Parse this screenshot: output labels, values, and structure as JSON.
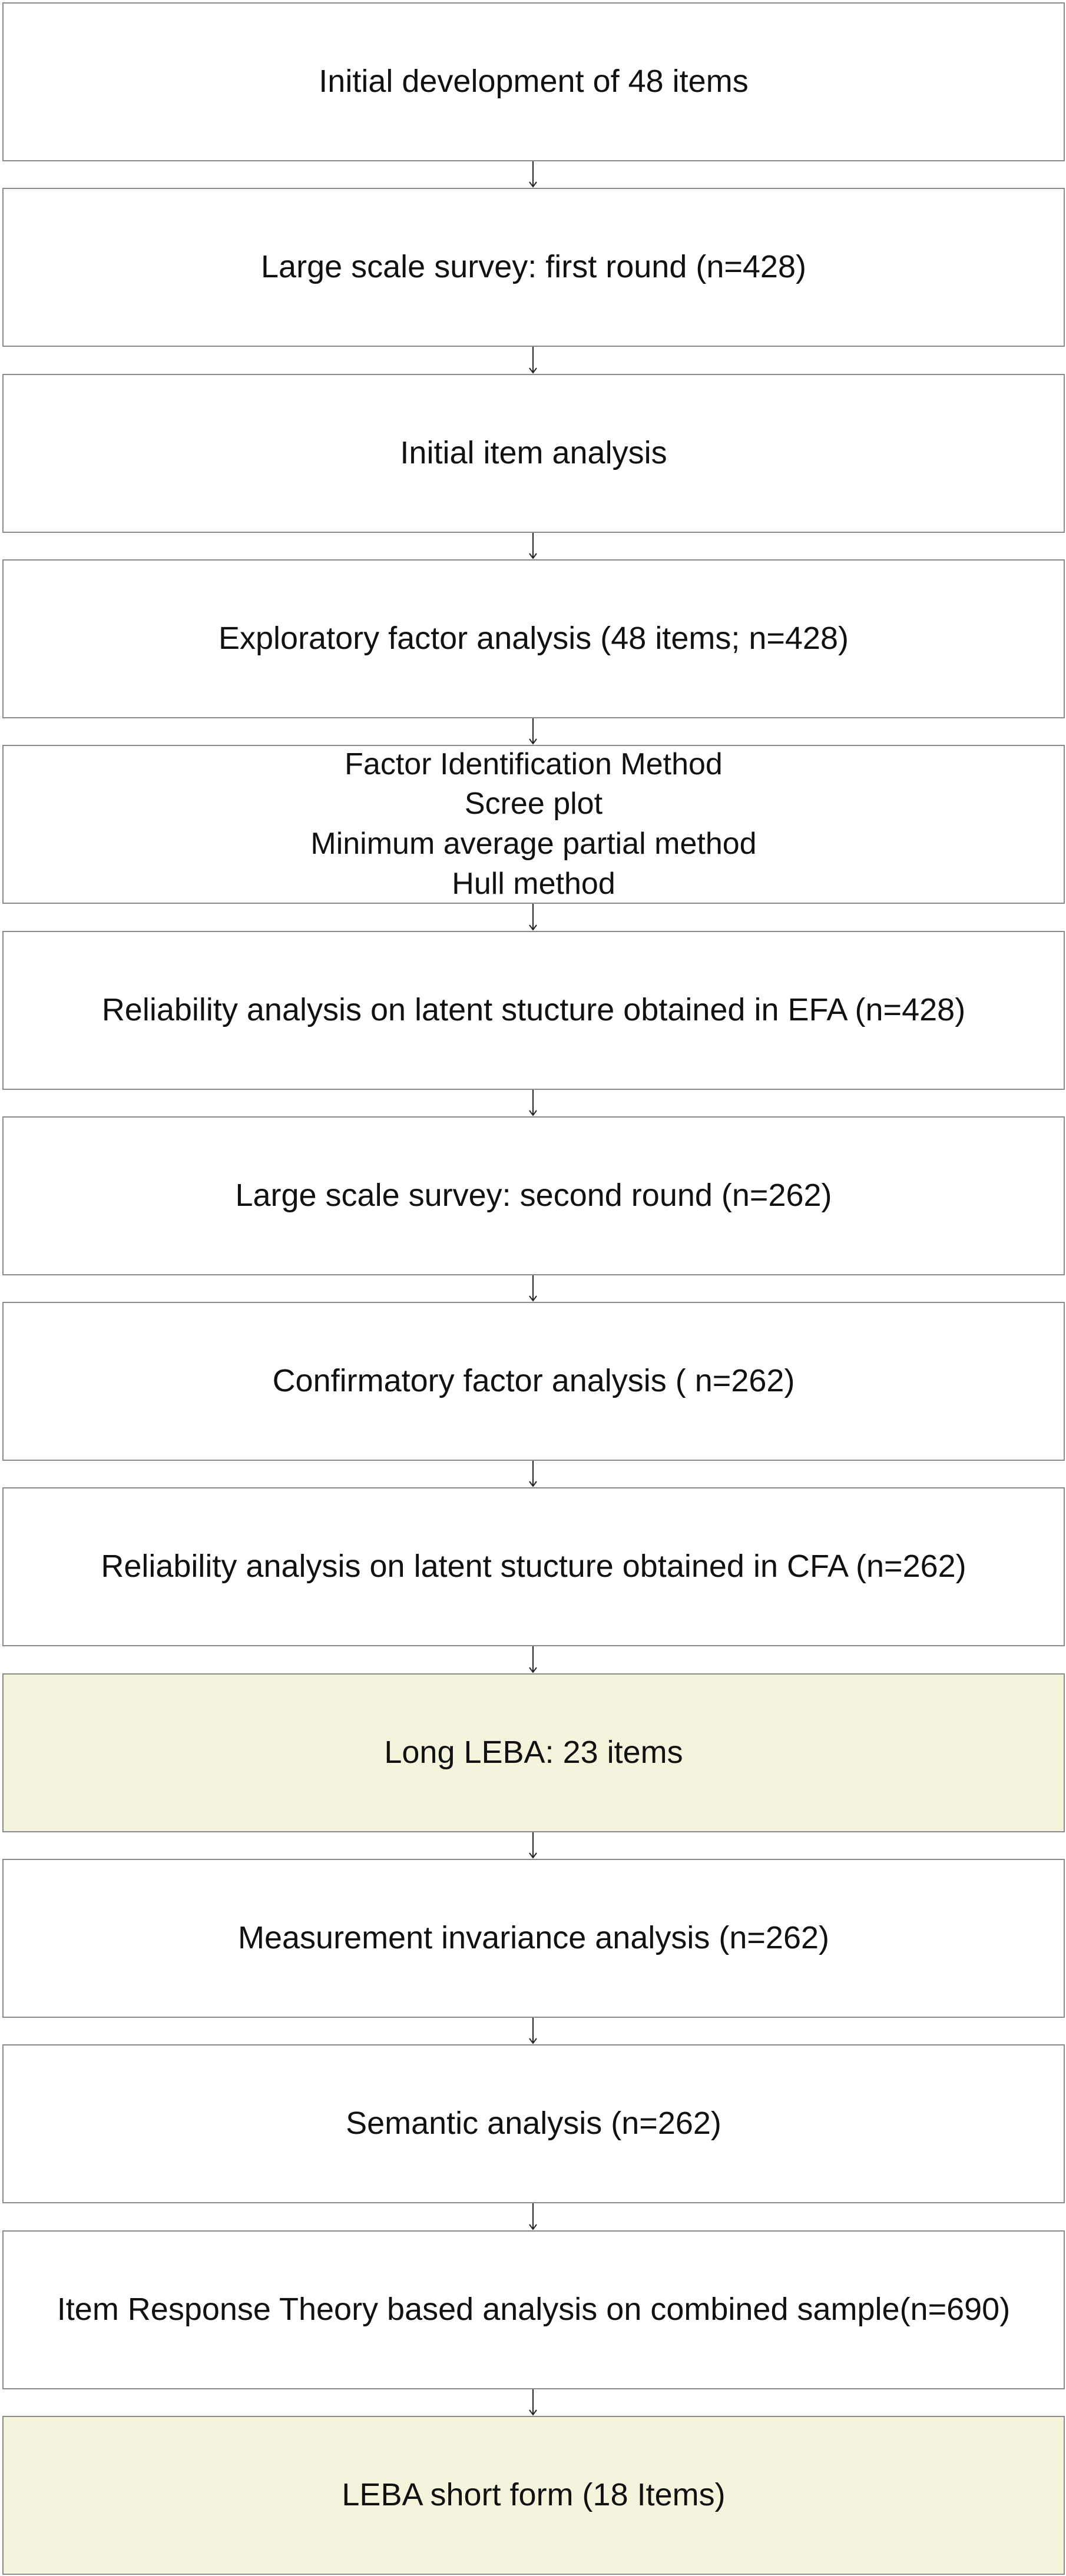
{
  "colors": {
    "default_fill": "#ffffff",
    "highlight_fill": "#f4f3dc",
    "border": "#8a8a8a",
    "connector": "#222222",
    "text": "#111111"
  },
  "steps": [
    {
      "lines": [
        "Initial development of 48 items"
      ],
      "highlight": false
    },
    {
      "lines": [
        "Large scale survey: first round (n=428)"
      ],
      "highlight": false
    },
    {
      "lines": [
        "Initial item analysis"
      ],
      "highlight": false
    },
    {
      "lines": [
        "Exploratory factor analysis (48 items; n=428)"
      ],
      "highlight": false
    },
    {
      "lines": [
        "Factor Identification Method",
        "Scree plot",
        "Minimum average partial method",
        "Hull method"
      ],
      "highlight": false
    },
    {
      "lines": [
        "Reliability analysis on latent stucture obtained in EFA (n=428)"
      ],
      "highlight": false
    },
    {
      "lines": [
        "Large scale survey: second round (n=262)"
      ],
      "highlight": false
    },
    {
      "lines": [
        "Confirmatory factor analysis ( n=262)"
      ],
      "highlight": false
    },
    {
      "lines": [
        "Reliability analysis on latent stucture obtained in CFA (n=262)"
      ],
      "highlight": false
    },
    {
      "lines": [
        "Long LEBA: 23 items"
      ],
      "highlight": true
    },
    {
      "lines": [
        "Measurement invariance analysis (n=262)"
      ],
      "highlight": false
    },
    {
      "lines": [
        "Semantic analysis (n=262)"
      ],
      "highlight": false
    },
    {
      "lines": [
        "Item Response Theory based analysis on combined sample(n=690)"
      ],
      "highlight": false
    },
    {
      "lines": [
        "LEBA short form (18 Items)"
      ],
      "highlight": true
    }
  ]
}
